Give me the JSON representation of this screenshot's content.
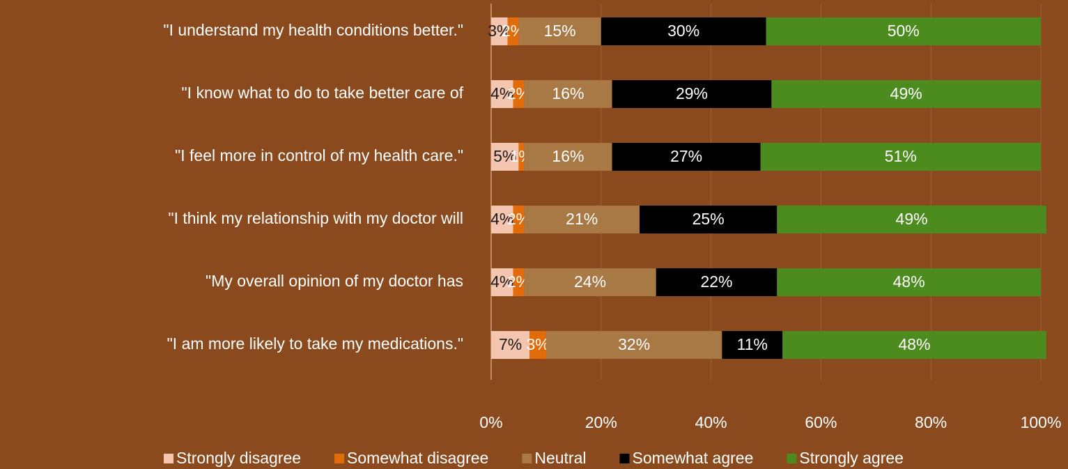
{
  "chart_data": {
    "type": "stacked_bar_horizontal",
    "categories": [
      "\"I understand my health conditions better.\"",
      "\"I know what to do to take better care of",
      "\"I feel more in control of my health care.\"",
      "\"I think my relationship with my doctor will",
      "\"My overall opinion of my doctor has",
      "\"I am more likely to take my medications.\""
    ],
    "series": [
      {
        "name": "Strongly disagree",
        "color": "#f4c6af",
        "values": [
          3,
          4,
          5,
          4,
          4,
          7
        ],
        "value_labels": [
          "3%",
          "4%",
          "5%",
          "4%",
          "4%",
          "7%"
        ]
      },
      {
        "name": "Somewhat disagree",
        "color": "#e26b0a",
        "values": [
          2,
          2,
          1,
          2,
          2,
          3
        ],
        "value_labels": [
          "2%",
          "2%",
          "1%",
          "2%",
          "2%",
          "3%"
        ]
      },
      {
        "name": "Neutral",
        "color": "#a87845",
        "values": [
          15,
          16,
          16,
          21,
          24,
          32
        ],
        "value_labels": [
          "15%",
          "16%",
          "16%",
          "21%",
          "24%",
          "32%"
        ]
      },
      {
        "name": "Somewhat agree",
        "color": "#000000",
        "values": [
          30,
          29,
          27,
          25,
          22,
          11
        ],
        "value_labels": [
          "30%",
          "29%",
          "27%",
          "25%",
          "22%",
          "11%"
        ]
      },
      {
        "name": "Strongly agree",
        "color": "#4c8c1e",
        "values": [
          50,
          49,
          51,
          49,
          48,
          48
        ],
        "value_labels": [
          "50%",
          "49%",
          "51%",
          "49%",
          "48%",
          "48%"
        ]
      }
    ],
    "xlim": [
      0,
      100
    ],
    "xticks": [
      {
        "value": 0,
        "label": "0%"
      },
      {
        "value": 20,
        "label": "20%"
      },
      {
        "value": 40,
        "label": "40%"
      },
      {
        "value": 60,
        "label": "60%"
      },
      {
        "value": 80,
        "label": "80%"
      },
      {
        "value": 100,
        "label": "100%"
      }
    ],
    "grid": true,
    "legend": "bottom"
  }
}
